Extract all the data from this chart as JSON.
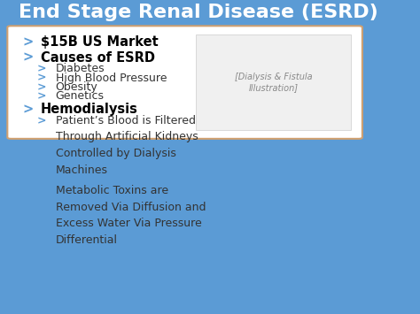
{
  "title": "End Stage Renal Disease (ESRD)",
  "title_color": "#FFFFFF",
  "title_bg_color": "#5B9BD5",
  "content_bg_color": "#FFFFFF",
  "slide_bg_color": "#5B9BD5",
  "content_border_color": "#D0A070",
  "bullet_color": "#5B9BD5",
  "text_color": "#333333",
  "bold_color": "#000000",
  "bullets": [
    {
      "level": 0,
      "bold": true,
      "text": "$15B US Market"
    },
    {
      "level": 0,
      "bold": true,
      "text": "Causes of ESRD"
    },
    {
      "level": 1,
      "bold": false,
      "text": "Diabetes"
    },
    {
      "level": 1,
      "bold": false,
      "text": "High Blood Pressure"
    },
    {
      "level": 1,
      "bold": false,
      "text": "Obesity"
    },
    {
      "level": 1,
      "bold": false,
      "text": "Genetics"
    },
    {
      "level": 0,
      "bold": true,
      "text": "Hemodialysis"
    },
    {
      "level": 1,
      "bold": false,
      "text": "Patient’s Blood is Filtered\nThrough Artificial Kidneys\nControlled by Dialysis\nMachines"
    },
    {
      "level": 1,
      "bold": false,
      "text": "Metabolic Toxins are\nRemoved Via Diffusion and\nExcess Water Via Pressure\nDifferential"
    }
  ],
  "figsize": [
    4.74,
    3.55
  ],
  "dpi": 100
}
